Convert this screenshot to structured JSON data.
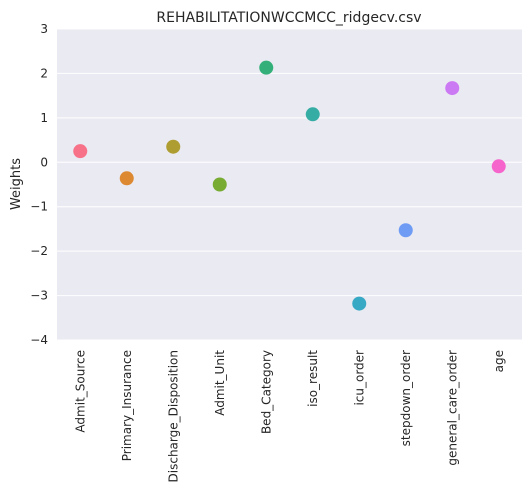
{
  "chart_data": {
    "type": "scatter",
    "title": "REHABILITATIONWCCMCC_ridgecv.csv",
    "xlabel": "",
    "ylabel": "Weights",
    "ylim": [
      -4,
      3
    ],
    "yticks": [
      3,
      2,
      1,
      0,
      -1,
      -2,
      -3,
      -4
    ],
    "ytick_labels": [
      "3",
      "2",
      "1",
      "0",
      "−1",
      "−2",
      "−3",
      "−4"
    ],
    "grid": true,
    "categories": [
      "Admit_Source",
      "Primary_Insurance",
      "Discharge_Disposition",
      "Admit_Unit",
      "Bed_Category",
      "iso_result",
      "icu_order",
      "stepdown_order",
      "general_care_order",
      "age"
    ],
    "values": [
      0.25,
      -0.36,
      0.35,
      -0.5,
      2.13,
      1.08,
      -3.18,
      -1.53,
      1.67,
      -0.09
    ],
    "colors": {
      "background": "#eaeaf2",
      "grid": "#ffffff",
      "points": [
        "#f77189",
        "#dc8932",
        "#ae9d31",
        "#77ab31",
        "#33b07a",
        "#36ada4",
        "#38a9c5",
        "#6e9bf4",
        "#cc7af4",
        "#f565cc"
      ]
    }
  }
}
